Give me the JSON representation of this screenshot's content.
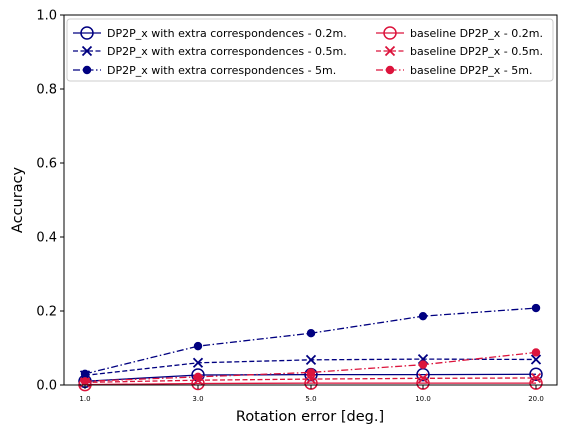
{
  "chart_data": {
    "type": "line",
    "title": "",
    "xlabel": "Rotation error [deg.]",
    "ylabel": "Accuracy",
    "ylim": [
      0,
      1.0
    ],
    "x_tick_labels": [
      "1.0",
      "3.0",
      "5.0",
      "10.0",
      "20.0"
    ],
    "y_tick_labels": [
      "0.0",
      "0.2",
      "0.4",
      "0.6",
      "0.8",
      "1.0"
    ],
    "y_ticks": [
      0,
      0.2,
      0.4,
      0.6,
      0.8,
      1.0
    ],
    "grid": false,
    "legend_placement": "top",
    "series": [
      {
        "name": "DP2P_x with extra correspondences - 0.2m.",
        "color": "#000080",
        "linestyle": "solid",
        "marker": "open-circle",
        "values": [
          0.01,
          0.027,
          0.028,
          0.028,
          0.029
        ]
      },
      {
        "name": "DP2P_x with extra correspondences - 0.5m.",
        "color": "#000080",
        "linestyle": "dashed",
        "marker": "x",
        "values": [
          0.026,
          0.06,
          0.068,
          0.07,
          0.069
        ]
      },
      {
        "name": "DP2P_x with extra correspondences - 5m.",
        "color": "#000080",
        "linestyle": "dashdot",
        "marker": "filled-circle",
        "values": [
          0.03,
          0.105,
          0.14,
          0.186,
          0.208
        ]
      },
      {
        "name": "baseline DP2P_x - 0.2m.",
        "color": "#dc143c",
        "linestyle": "solid",
        "marker": "open-circle",
        "values": [
          0.001,
          0.004,
          0.005,
          0.005,
          0.005
        ]
      },
      {
        "name": "baseline DP2P_x - 0.5m.",
        "color": "#dc143c",
        "linestyle": "dashed",
        "marker": "x",
        "values": [
          0.007,
          0.013,
          0.016,
          0.018,
          0.019
        ]
      },
      {
        "name": "baseline DP2P_x - 5m.",
        "color": "#dc143c",
        "linestyle": "dashdot",
        "marker": "filled-circle",
        "values": [
          0.01,
          0.022,
          0.034,
          0.055,
          0.088
        ]
      }
    ]
  }
}
